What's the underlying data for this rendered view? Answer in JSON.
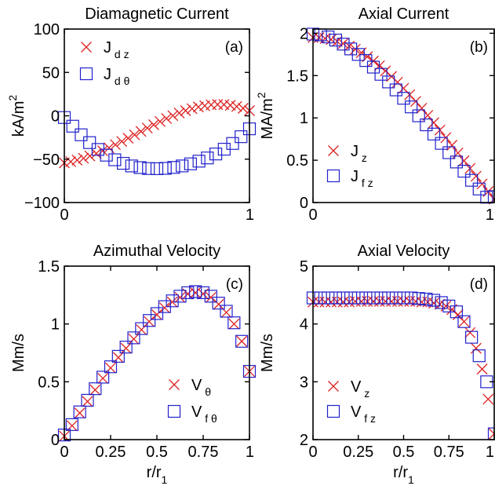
{
  "colors": {
    "series_x": "#dd2222",
    "series_sq": "#2222cc",
    "axis": "#000000"
  },
  "chart_data": [
    {
      "type": "scatter",
      "title": "Diamagnetic Current",
      "panel_label": "(a)",
      "xlabel": "",
      "ylabel": "kA/m",
      "ylabel_sup": "2",
      "xlim": [
        0,
        1
      ],
      "ylim": [
        -100,
        100
      ],
      "xticks": [
        0,
        1
      ],
      "xtick_labels": [
        "0",
        "1"
      ],
      "yticks": [
        -100,
        -50,
        0,
        50,
        100
      ],
      "ytick_labels": [
        "−100",
        "−50",
        "0",
        "50",
        "100"
      ],
      "legend_position": "top-left",
      "series": [
        {
          "name": "J",
          "sub": "d z",
          "marker": "x",
          "x": [
            0,
            0.0345,
            0.069,
            0.1034,
            0.1379,
            0.1724,
            0.2069,
            0.2414,
            0.2759,
            0.3103,
            0.3448,
            0.3793,
            0.4138,
            0.4483,
            0.4828,
            0.5172,
            0.5517,
            0.5862,
            0.6207,
            0.6552,
            0.6897,
            0.7241,
            0.7586,
            0.7931,
            0.8276,
            0.8621,
            0.8966,
            0.931,
            0.9655,
            1
          ],
          "y": [
            -54.3,
            -52.9,
            -51.1,
            -48.9,
            -46.3,
            -43.4,
            -40.3,
            -36.9,
            -33.3,
            -29.6,
            -25.8,
            -21.9,
            -18,
            -14.1,
            -10.3,
            -6.6,
            -3.1,
            0.2,
            3.2,
            5.9,
            8.2,
            10.2,
            11.6,
            12.6,
            13,
            12.9,
            12.1,
            10.7,
            8.6,
            5.9
          ]
        },
        {
          "name": "J",
          "sub": "d θ",
          "marker": "square",
          "x": [
            0,
            0.0455,
            0.0909,
            0.1364,
            0.1818,
            0.2273,
            0.2727,
            0.3182,
            0.3636,
            0.4091,
            0.4545,
            0.5,
            0.5455,
            0.5909,
            0.6364,
            0.6818,
            0.7273,
            0.7727,
            0.8182,
            0.8636,
            0.9091,
            0.9545,
            1
          ],
          "y": [
            -2,
            -12,
            -21.9,
            -30.9,
            -38.8,
            -45.4,
            -50.7,
            -54.8,
            -57.8,
            -59.7,
            -60.8,
            -61,
            -60.6,
            -59.5,
            -57.8,
            -55.4,
            -52.3,
            -48.6,
            -44,
            -38.5,
            -31.9,
            -24.1,
            -15
          ]
        }
      ]
    },
    {
      "type": "scatter",
      "title": "Axial Current",
      "panel_label": "(b)",
      "xlabel": "",
      "ylabel": "MA/m",
      "ylabel_sup": "2",
      "xlim": [
        0,
        1
      ],
      "ylim": [
        0,
        2.05
      ],
      "xticks": [
        0,
        1
      ],
      "xtick_labels": [
        "0",
        "1"
      ],
      "yticks": [
        0,
        0.5,
        1,
        1.5,
        2
      ],
      "ytick_labels": [
        "0",
        "0.5",
        "1",
        "1.5",
        "2"
      ],
      "legend_position": "bottom-left",
      "series": [
        {
          "name": "J",
          "sub": "z",
          "marker": "x",
          "x": [
            0,
            0.0333,
            0.0667,
            0.1,
            0.1333,
            0.1667,
            0.2,
            0.2333,
            0.2667,
            0.3,
            0.3333,
            0.3667,
            0.4,
            0.4333,
            0.4667,
            0.5,
            0.5333,
            0.5667,
            0.6,
            0.6333,
            0.6667,
            0.7,
            0.7333,
            0.7667,
            0.8,
            0.8333,
            0.8667,
            0.9,
            0.9333,
            0.9667,
            1
          ],
          "y": [
            1.95,
            1.948,
            1.939,
            1.925,
            1.905,
            1.879,
            1.848,
            1.812,
            1.77,
            1.723,
            1.672,
            1.616,
            1.555,
            1.49,
            1.422,
            1.35,
            1.274,
            1.195,
            1.114,
            1.03,
            0.944,
            0.856,
            0.767,
            0.677,
            0.586,
            0.494,
            0.403,
            0.311,
            0.22,
            0.13,
            0.04
          ]
        },
        {
          "name": "J",
          "sub": "f z",
          "marker": "square",
          "x": [
            0,
            0.0417,
            0.0833,
            0.125,
            0.1667,
            0.2083,
            0.25,
            0.2917,
            0.3333,
            0.375,
            0.4167,
            0.4583,
            0.5,
            0.5417,
            0.5833,
            0.625,
            0.6667,
            0.7083,
            0.75,
            0.7917,
            0.8333,
            0.875,
            0.9167,
            0.9583,
            1
          ],
          "y": [
            1.99,
            1.981,
            1.957,
            1.92,
            1.872,
            1.815,
            1.75,
            1.678,
            1.6,
            1.515,
            1.425,
            1.331,
            1.232,
            1.13,
            1.025,
            0.918,
            0.809,
            0.699,
            0.589,
            0.479,
            0.37,
            0.263,
            0.16,
            0.063,
            0.07
          ]
        }
      ]
    },
    {
      "type": "scatter",
      "title": "Azimuthal Velocity",
      "panel_label": "(c)",
      "xlabel": "r/r",
      "xlabel_sub": "1",
      "ylabel": "Mm/s",
      "xlim": [
        0,
        1
      ],
      "ylim": [
        0,
        1.5
      ],
      "xticks": [
        0,
        0.25,
        0.5,
        0.75,
        1
      ],
      "xtick_labels": [
        "0",
        "0.25",
        "0.5",
        "0.75",
        "1"
      ],
      "yticks": [
        0,
        0.5,
        1,
        1.5
      ],
      "ytick_labels": [
        "0",
        "0.5",
        "1",
        "1.5"
      ],
      "legend_position": "bottom-right",
      "series": [
        {
          "name": "V",
          "sub": "θ",
          "marker": "x",
          "x": [
            0,
            0.0417,
            0.0833,
            0.125,
            0.1667,
            0.2083,
            0.25,
            0.2917,
            0.3333,
            0.375,
            0.4167,
            0.4583,
            0.5,
            0.5417,
            0.5833,
            0.625,
            0.6667,
            0.7083,
            0.75,
            0.7917,
            0.8333,
            0.875,
            0.9167,
            0.9583,
            1
          ],
          "y": [
            0.03,
            0.12,
            0.23,
            0.33,
            0.43,
            0.53,
            0.62,
            0.71,
            0.79,
            0.87,
            0.95,
            1.02,
            1.08,
            1.14,
            1.19,
            1.23,
            1.26,
            1.27,
            1.26,
            1.23,
            1.17,
            1.1,
            1,
            0.85,
            0.59
          ]
        },
        {
          "name": "V",
          "sub": "f θ",
          "marker": "square",
          "x": [
            0,
            0.0417,
            0.0833,
            0.125,
            0.1667,
            0.2083,
            0.25,
            0.2917,
            0.3333,
            0.375,
            0.4167,
            0.4583,
            0.5,
            0.5417,
            0.5833,
            0.625,
            0.6667,
            0.7083,
            0.75,
            0.7917,
            0.8333,
            0.875,
            0.9167,
            0.9583,
            1
          ],
          "y": [
            0.04,
            0.13,
            0.24,
            0.34,
            0.44,
            0.54,
            0.63,
            0.72,
            0.8,
            0.88,
            0.96,
            1.03,
            1.09,
            1.15,
            1.2,
            1.24,
            1.27,
            1.28,
            1.27,
            1.24,
            1.18,
            1.11,
            1.01,
            0.85,
            0.59
          ]
        }
      ]
    },
    {
      "type": "scatter",
      "title": "Axial Velocity",
      "panel_label": "(d)",
      "xlabel": "r/r",
      "xlabel_sub": "1",
      "ylabel": "Mm/s",
      "xlim": [
        0,
        1
      ],
      "ylim": [
        2,
        5
      ],
      "xticks": [
        0,
        0.25,
        0.5,
        0.75,
        1
      ],
      "xtick_labels": [
        "0",
        "0.25",
        "0.5",
        "0.75",
        "1"
      ],
      "yticks": [
        2,
        3,
        4,
        5
      ],
      "ytick_labels": [
        "2",
        "3",
        "4",
        "5"
      ],
      "legend_position": "bottom-left",
      "series": [
        {
          "name": "V",
          "sub": "z",
          "marker": "x",
          "x": [
            0,
            0.0333,
            0.0667,
            0.1,
            0.1333,
            0.1667,
            0.2,
            0.2333,
            0.2667,
            0.3,
            0.3333,
            0.3667,
            0.4,
            0.4333,
            0.4667,
            0.5,
            0.5333,
            0.5667,
            0.6,
            0.6333,
            0.6667,
            0.7,
            0.7333,
            0.7667,
            0.8,
            0.8333,
            0.8667,
            0.9,
            0.9333,
            0.9667,
            1
          ],
          "y": [
            4.38,
            4.38,
            4.38,
            4.38,
            4.38,
            4.38,
            4.38,
            4.39,
            4.39,
            4.39,
            4.39,
            4.39,
            4.39,
            4.39,
            4.39,
            4.39,
            4.39,
            4.39,
            4.38,
            4.38,
            4.36,
            4.34,
            4.31,
            4.25,
            4.16,
            4.04,
            3.85,
            3.58,
            3.22,
            2.7,
            2.1
          ]
        },
        {
          "name": "V",
          "sub": "f z",
          "marker": "square",
          "x": [
            0,
            0.0417,
            0.0833,
            0.125,
            0.1667,
            0.2083,
            0.25,
            0.2917,
            0.3333,
            0.375,
            0.4167,
            0.4583,
            0.5,
            0.5417,
            0.5833,
            0.625,
            0.6667,
            0.7083,
            0.75,
            0.7917,
            0.8333,
            0.875,
            0.9167,
            0.9583,
            1
          ],
          "y": [
            4.45,
            4.45,
            4.45,
            4.45,
            4.45,
            4.45,
            4.45,
            4.45,
            4.45,
            4.45,
            4.45,
            4.45,
            4.45,
            4.45,
            4.44,
            4.43,
            4.41,
            4.37,
            4.31,
            4.21,
            4.04,
            3.77,
            3.45,
            3.0,
            2.1
          ]
        }
      ]
    }
  ]
}
